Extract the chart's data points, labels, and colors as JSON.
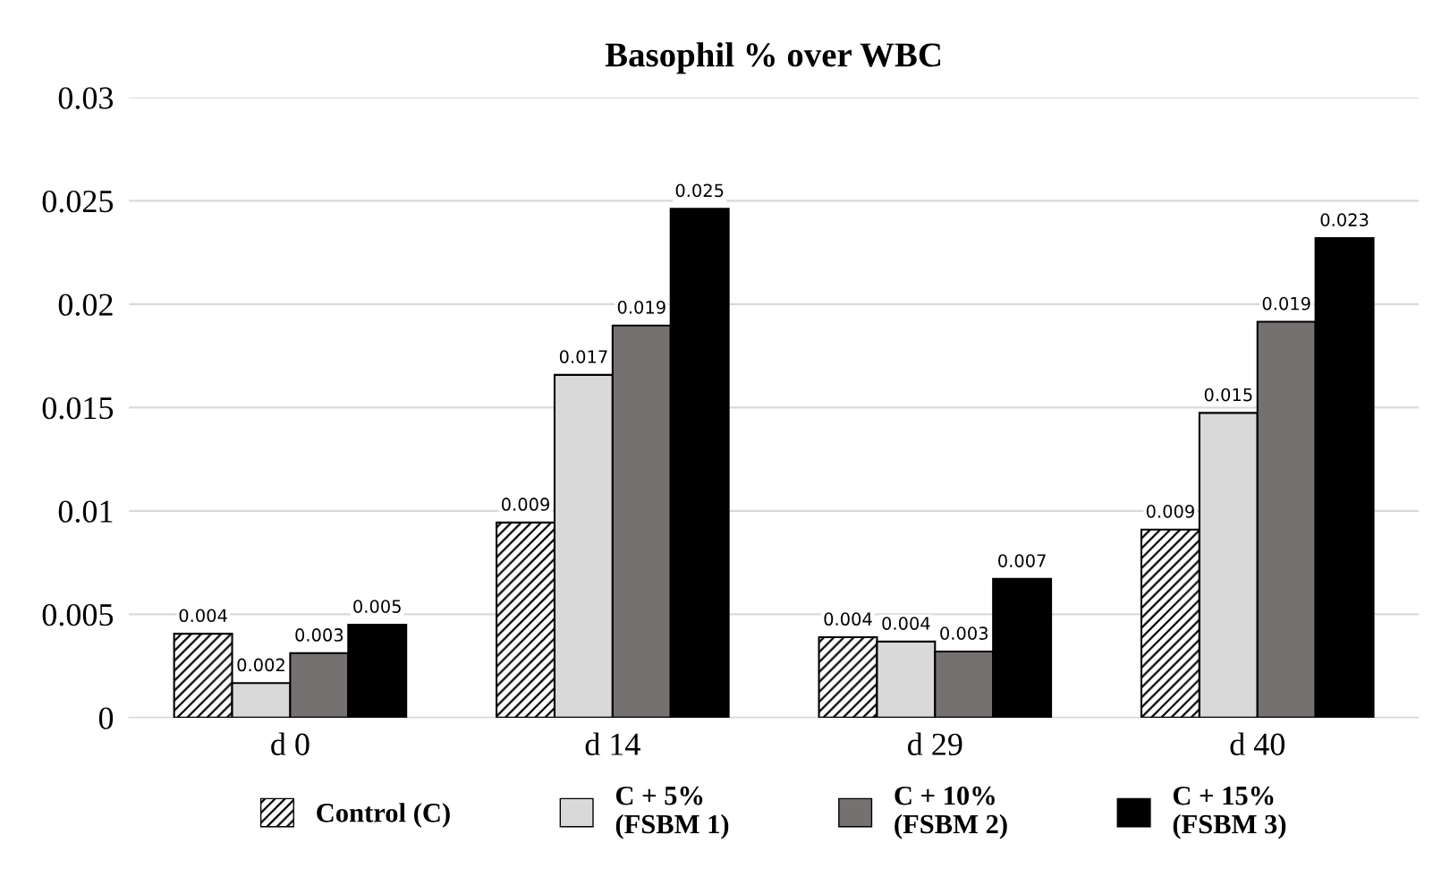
{
  "chart_data": {
    "type": "bar",
    "title": "Basophil % over WBC",
    "categories": [
      "d 0",
      "d 14",
      "d 29",
      "d 40"
    ],
    "series": [
      {
        "name": "Control (C)",
        "color": "#000000",
        "values": [
          0.00406,
          0.00944,
          0.00389,
          0.0091
        ],
        "value_labels": [
          "0.004",
          "0.009",
          "0.004",
          "0.009"
        ]
      },
      {
        "name": "C + 5%\n(FSBM 1)",
        "color": "#d9d9d9",
        "values": [
          0.00167,
          0.01658,
          0.00368,
          0.01474
        ],
        "value_labels": [
          "0.002",
          "0.017",
          "0.004",
          "0.015"
        ]
      },
      {
        "name": "C + 10%\n(FSBM 2)",
        "color": "#767171",
        "values": [
          0.00312,
          0.01897,
          0.0032,
          0.01915
        ],
        "value_labels": [
          "0.003",
          "0.019",
          "0.003",
          "0.019"
        ]
      },
      {
        "name": "C + 15%\n(FSBM 3)",
        "color": "#000000",
        "values": [
          0.0045,
          0.02462,
          0.00671,
          0.0232
        ],
        "value_labels": [
          "0.005",
          "0.025",
          "0.007",
          "0.023"
        ]
      }
    ],
    "ylim": [
      0,
      0.03
    ],
    "yticks": [
      0,
      0.005,
      0.01,
      0.015,
      0.02,
      0.025,
      0.03
    ],
    "grid": "y",
    "legend": "bottom"
  }
}
